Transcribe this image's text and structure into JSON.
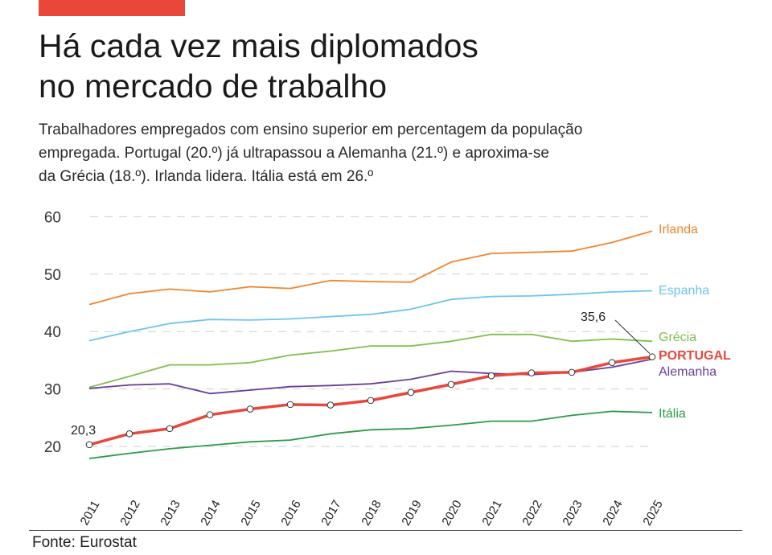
{
  "header": {
    "title_line1": "Há cada vez mais diplomados",
    "title_line2": "no mercado de trabalho",
    "subtitle_line1": "Trabalhadores empregados com ensino superior em percentagem da população",
    "subtitle_line2": "empregada. Portugal (20.º) já ultrapassou a Alemanha (21.º) e aproxima-se",
    "subtitle_line3": "da Grécia (18.º). Irlanda lidera. Itália está em 26.º"
  },
  "footer": {
    "source": "Fonte: Eurostat"
  },
  "colors": {
    "accent": "#e8473a"
  },
  "chart_data": {
    "type": "line",
    "x": [
      "2011",
      "2012",
      "2013",
      "2014",
      "2015",
      "2016",
      "2017",
      "2018",
      "2019",
      "2020",
      "2021",
      "2022",
      "2023",
      "2024",
      "2025"
    ],
    "ylim": [
      15,
      62
    ],
    "yticks": [
      20,
      30,
      40,
      50,
      60
    ],
    "grid": true,
    "series": [
      {
        "name": "Irlanda",
        "color": "#f0852d",
        "values": [
          44.7,
          46.6,
          47.4,
          46.9,
          47.8,
          47.5,
          48.9,
          48.7,
          48.6,
          52.1,
          53.6,
          53.8,
          54.0,
          55.5,
          57.5
        ]
      },
      {
        "name": "Espanha",
        "color": "#6ec3ee",
        "values": [
          38.4,
          40.0,
          41.4,
          42.1,
          42.0,
          42.2,
          42.6,
          43.0,
          43.9,
          45.6,
          46.1,
          46.2,
          46.5,
          46.9,
          47.1
        ]
      },
      {
        "name": "Grécia",
        "color": "#7fbf4d",
        "values": [
          30.3,
          32.2,
          34.2,
          34.2,
          34.6,
          35.9,
          36.6,
          37.5,
          37.5,
          38.3,
          39.5,
          39.5,
          38.3,
          38.7,
          38.3
        ]
      },
      {
        "name": "PORTUGAL",
        "color": "#e8473a",
        "highlight": true,
        "values": [
          20.3,
          22.2,
          23.1,
          25.5,
          26.5,
          27.3,
          27.2,
          28.0,
          29.4,
          30.8,
          32.3,
          32.8,
          32.9,
          34.6,
          35.6
        ]
      },
      {
        "name": "Alemanha",
        "color": "#6a3d9a",
        "values": [
          30.1,
          30.7,
          30.9,
          29.2,
          29.8,
          30.4,
          30.6,
          30.9,
          31.7,
          33.1,
          32.7,
          32.5,
          32.9,
          33.8,
          35.2
        ]
      },
      {
        "name": "Itália",
        "color": "#2e9a48",
        "values": [
          17.9,
          18.8,
          19.6,
          20.2,
          20.8,
          21.1,
          22.2,
          22.9,
          23.1,
          23.7,
          24.4,
          24.4,
          25.4,
          26.1,
          25.9
        ]
      }
    ],
    "annotations": [
      {
        "series": "PORTUGAL",
        "x": "2011",
        "text": "20,3"
      },
      {
        "series": "PORTUGAL",
        "x": "2025",
        "text": "35,6"
      }
    ]
  }
}
